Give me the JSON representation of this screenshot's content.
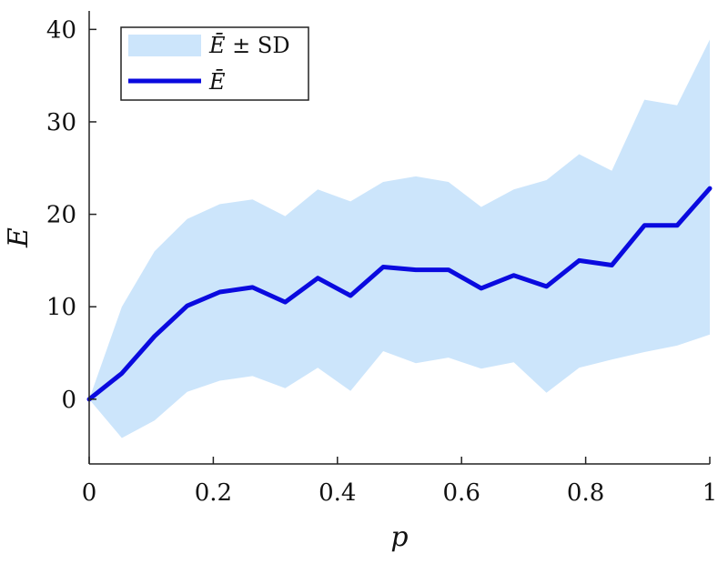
{
  "chart_data": {
    "type": "area",
    "x": [
      0,
      0.0526,
      0.1053,
      0.1579,
      0.2105,
      0.2632,
      0.3158,
      0.3684,
      0.4211,
      0.4737,
      0.5263,
      0.5789,
      0.6316,
      0.6842,
      0.7368,
      0.7895,
      0.8421,
      0.8947,
      0.9474,
      1
    ],
    "series": [
      {
        "name": "Ē",
        "values": [
          0,
          2.8,
          6.8,
          10.1,
          11.6,
          12.1,
          10.5,
          13.1,
          11.2,
          14.3,
          14.0,
          14.0,
          12.0,
          13.4,
          12.2,
          15.0,
          14.5,
          18.8,
          18.8,
          22.8
        ]
      }
    ],
    "band": {
      "name": "Ē ± SD",
      "upper": [
        0,
        10.0,
        16.0,
        19.5,
        21.1,
        21.6,
        19.8,
        22.7,
        21.4,
        23.5,
        24.1,
        23.5,
        20.8,
        22.7,
        23.7,
        26.5,
        24.7,
        32.4,
        31.8,
        38.9
      ],
      "lower": [
        0,
        -4.2,
        -2.3,
        0.8,
        2.0,
        2.5,
        1.2,
        3.4,
        0.9,
        5.2,
        3.9,
        4.5,
        3.3,
        4.0,
        0.7,
        3.4,
        4.3,
        5.1,
        5.8,
        7.0
      ]
    },
    "xlabel": "p",
    "ylabel": "E",
    "xlim": [
      0,
      1
    ],
    "ylim": [
      -7,
      42
    ],
    "xticks": [
      0,
      0.2,
      0.4,
      0.6,
      0.8,
      1
    ],
    "xtick_labels": [
      "0",
      "0.2",
      "0.4",
      "0.6",
      "0.8",
      "1"
    ],
    "yticks": [
      0,
      10,
      20,
      30,
      40
    ],
    "ytick_labels": [
      "0",
      "10",
      "20",
      "30",
      "40"
    ],
    "grid": false,
    "legend_position": "top-left",
    "legend": {
      "band_label_symbol": "Ē",
      "band_label_suffix": " ± SD",
      "line_label_symbol": "Ē"
    },
    "colors": {
      "band": "#cce5fb",
      "line": "#0a0adf",
      "axis": "#222222"
    }
  }
}
